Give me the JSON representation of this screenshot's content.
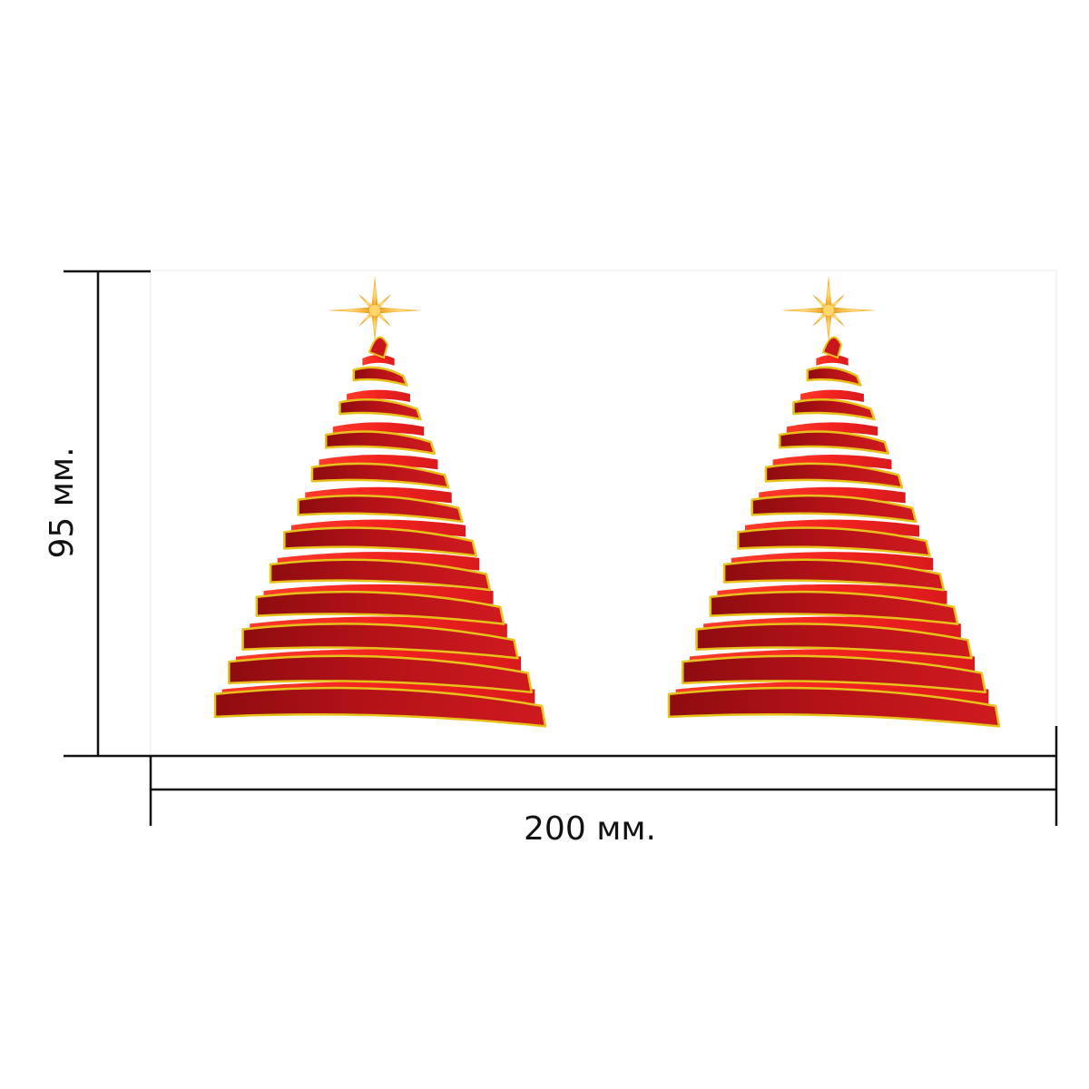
{
  "dimensions": {
    "width_label": "200 мм.",
    "height_label": "95 мм."
  },
  "trees": [
    {
      "name": "tree-left"
    },
    {
      "name": "tree-right"
    }
  ],
  "colors": {
    "ribbon_dark": "#a30f12",
    "ribbon_mid": "#c8161c",
    "ribbon_bright": "#f2231f",
    "ribbon_edge": "#e6c21a",
    "star": "#f4b53a",
    "line": "#111111"
  },
  "icons": {
    "star": "star-icon",
    "tree": "ribbon-tree-icon"
  }
}
